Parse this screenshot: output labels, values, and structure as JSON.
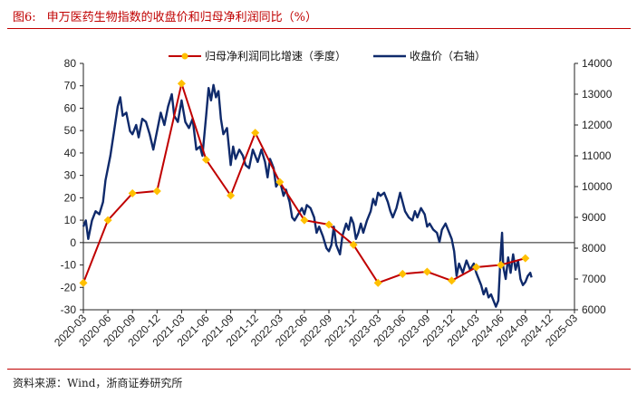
{
  "figure": {
    "number": "图6:",
    "title": "申万医药生物指数的收盘价和归母净利润同比（%）",
    "source": "资料来源：Wind，浙商证券研究所"
  },
  "chart_data": {
    "type": "line",
    "legend": {
      "profit_label": "归母净利润同比增速（季度）",
      "close_label": "收盘价（右轴）",
      "placement": "top"
    },
    "x_categories": [
      "2020-03",
      "2020-06",
      "2020-09",
      "2020-12",
      "2021-03",
      "2021-06",
      "2021-09",
      "2021-12",
      "2022-03",
      "2022-06",
      "2022-09",
      "2022-12",
      "2023-03",
      "2023-06",
      "2023-09",
      "2023-12",
      "2024-03",
      "2024-06",
      "2024-09",
      "2024-12",
      "2025-03"
    ],
    "left_axis": {
      "min": -30,
      "max": 80,
      "ticks": [
        80,
        70,
        60,
        50,
        40,
        30,
        20,
        10,
        0,
        -10,
        -20,
        -30
      ]
    },
    "right_axis": {
      "min": 6000,
      "max": 14000,
      "ticks": [
        14000,
        13000,
        12000,
        11000,
        10000,
        9000,
        8000,
        7000,
        6000
      ]
    },
    "series": [
      {
        "name": "归母净利润同比增速（季度）",
        "axis": "left",
        "color": "#c00000",
        "marker_color": "#ffc000",
        "points": [
          {
            "x": "2020-03",
            "y": -18
          },
          {
            "x": "2020-06",
            "y": 10
          },
          {
            "x": "2020-09",
            "y": 22
          },
          {
            "x": "2020-12",
            "y": 23
          },
          {
            "x": "2021-03",
            "y": 71
          },
          {
            "x": "2021-06",
            "y": 37
          },
          {
            "x": "2021-09",
            "y": 21
          },
          {
            "x": "2021-12",
            "y": 49
          },
          {
            "x": "2022-03",
            "y": 27
          },
          {
            "x": "2022-06",
            "y": 10
          },
          {
            "x": "2022-09",
            "y": 8
          },
          {
            "x": "2022-12",
            "y": -1
          },
          {
            "x": "2023-03",
            "y": -18
          },
          {
            "x": "2023-06",
            "y": -14
          },
          {
            "x": "2023-09",
            "y": -13
          },
          {
            "x": "2023-12",
            "y": -17
          },
          {
            "x": "2024-03",
            "y": -11
          },
          {
            "x": "2024-06",
            "y": -10
          },
          {
            "x": "2024-09",
            "y": -7
          }
        ]
      },
      {
        "name": "收盘价（右轴）",
        "axis": "right",
        "color": "#0f2a6b",
        "points": [
          {
            "t": 0.0,
            "v": 8700
          },
          {
            "t": 0.1,
            "v": 8900
          },
          {
            "t": 0.2,
            "v": 8300
          },
          {
            "t": 0.35,
            "v": 8900
          },
          {
            "t": 0.5,
            "v": 9200
          },
          {
            "t": 0.65,
            "v": 9100
          },
          {
            "t": 0.8,
            "v": 9500
          },
          {
            "t": 0.9,
            "v": 10200
          },
          {
            "t": 1.0,
            "v": 10600
          },
          {
            "t": 1.1,
            "v": 11000
          },
          {
            "t": 1.25,
            "v": 11800
          },
          {
            "t": 1.4,
            "v": 12600
          },
          {
            "t": 1.5,
            "v": 12900
          },
          {
            "t": 1.6,
            "v": 12300
          },
          {
            "t": 1.75,
            "v": 12400
          },
          {
            "t": 1.9,
            "v": 11800
          },
          {
            "t": 2.0,
            "v": 11700
          },
          {
            "t": 2.15,
            "v": 12000
          },
          {
            "t": 2.25,
            "v": 11600
          },
          {
            "t": 2.4,
            "v": 12200
          },
          {
            "t": 2.55,
            "v": 12100
          },
          {
            "t": 2.7,
            "v": 11700
          },
          {
            "t": 2.85,
            "v": 11200
          },
          {
            "t": 3.0,
            "v": 11800
          },
          {
            "t": 3.15,
            "v": 12400
          },
          {
            "t": 3.3,
            "v": 12000
          },
          {
            "t": 3.45,
            "v": 12600
          },
          {
            "t": 3.6,
            "v": 13000
          },
          {
            "t": 3.7,
            "v": 12300
          },
          {
            "t": 3.85,
            "v": 12100
          },
          {
            "t": 4.0,
            "v": 12800
          },
          {
            "t": 4.15,
            "v": 12100
          },
          {
            "t": 4.3,
            "v": 11900
          },
          {
            "t": 4.45,
            "v": 12200
          },
          {
            "t": 4.6,
            "v": 11200
          },
          {
            "t": 4.75,
            "v": 11300
          },
          {
            "t": 4.85,
            "v": 11000
          },
          {
            "t": 5.0,
            "v": 12300
          },
          {
            "t": 5.1,
            "v": 13200
          },
          {
            "t": 5.2,
            "v": 12800
          },
          {
            "t": 5.3,
            "v": 13300
          },
          {
            "t": 5.4,
            "v": 12900
          },
          {
            "t": 5.5,
            "v": 13100
          },
          {
            "t": 5.6,
            "v": 12200
          },
          {
            "t": 5.7,
            "v": 11700
          },
          {
            "t": 5.85,
            "v": 11900
          },
          {
            "t": 6.0,
            "v": 10700
          },
          {
            "t": 6.1,
            "v": 11300
          },
          {
            "t": 6.2,
            "v": 10900
          },
          {
            "t": 6.35,
            "v": 11200
          },
          {
            "t": 6.5,
            "v": 11000
          },
          {
            "t": 6.6,
            "v": 10700
          },
          {
            "t": 6.75,
            "v": 10600
          },
          {
            "t": 6.9,
            "v": 11200
          },
          {
            "t": 7.0,
            "v": 11000
          },
          {
            "t": 7.1,
            "v": 10800
          },
          {
            "t": 7.25,
            "v": 11200
          },
          {
            "t": 7.4,
            "v": 10800
          },
          {
            "t": 7.5,
            "v": 10300
          },
          {
            "t": 7.6,
            "v": 10900
          },
          {
            "t": 7.75,
            "v": 10600
          },
          {
            "t": 7.85,
            "v": 10000
          },
          {
            "t": 8.0,
            "v": 10200
          },
          {
            "t": 8.15,
            "v": 9700
          },
          {
            "t": 8.25,
            "v": 9900
          },
          {
            "t": 8.4,
            "v": 9500
          },
          {
            "t": 8.5,
            "v": 9000
          },
          {
            "t": 8.6,
            "v": 8900
          },
          {
            "t": 8.75,
            "v": 9100
          },
          {
            "t": 8.9,
            "v": 9300
          },
          {
            "t": 9.0,
            "v": 9100
          },
          {
            "t": 9.1,
            "v": 9400
          },
          {
            "t": 9.25,
            "v": 9300
          },
          {
            "t": 9.4,
            "v": 9000
          },
          {
            "t": 9.5,
            "v": 8500
          },
          {
            "t": 9.6,
            "v": 8700
          },
          {
            "t": 9.75,
            "v": 8400
          },
          {
            "t": 9.9,
            "v": 8000
          },
          {
            "t": 10.0,
            "v": 7900
          },
          {
            "t": 10.1,
            "v": 8100
          },
          {
            "t": 10.2,
            "v": 8700
          },
          {
            "t": 10.3,
            "v": 8100
          },
          {
            "t": 10.45,
            "v": 7800
          },
          {
            "t": 10.55,
            "v": 8400
          },
          {
            "t": 10.7,
            "v": 8800
          },
          {
            "t": 10.8,
            "v": 8600
          },
          {
            "t": 10.9,
            "v": 9000
          },
          {
            "t": 11.0,
            "v": 8800
          },
          {
            "t": 11.1,
            "v": 8300
          },
          {
            "t": 11.2,
            "v": 8500
          },
          {
            "t": 11.3,
            "v": 8800
          },
          {
            "t": 11.4,
            "v": 8500
          },
          {
            "t": 11.55,
            "v": 8900
          },
          {
            "t": 11.7,
            "v": 9200
          },
          {
            "t": 11.8,
            "v": 9600
          },
          {
            "t": 11.9,
            "v": 9400
          },
          {
            "t": 12.0,
            "v": 9800
          },
          {
            "t": 12.1,
            "v": 9700
          },
          {
            "t": 12.25,
            "v": 9800
          },
          {
            "t": 12.4,
            "v": 9500
          },
          {
            "t": 12.5,
            "v": 9200
          },
          {
            "t": 12.6,
            "v": 9000
          },
          {
            "t": 12.75,
            "v": 9300
          },
          {
            "t": 12.9,
            "v": 9800
          },
          {
            "t": 13.0,
            "v": 9500
          },
          {
            "t": 13.1,
            "v": 9200
          },
          {
            "t": 13.25,
            "v": 9000
          },
          {
            "t": 13.4,
            "v": 8900
          },
          {
            "t": 13.5,
            "v": 9200
          },
          {
            "t": 13.6,
            "v": 9000
          },
          {
            "t": 13.75,
            "v": 9300
          },
          {
            "t": 13.9,
            "v": 9100
          },
          {
            "t": 14.0,
            "v": 8700
          },
          {
            "t": 14.1,
            "v": 8800
          },
          {
            "t": 14.25,
            "v": 8600
          },
          {
            "t": 14.4,
            "v": 8500
          },
          {
            "t": 14.5,
            "v": 8200
          },
          {
            "t": 14.6,
            "v": 8600
          },
          {
            "t": 14.75,
            "v": 8800
          },
          {
            "t": 14.9,
            "v": 8500
          },
          {
            "t": 15.0,
            "v": 8300
          },
          {
            "t": 15.1,
            "v": 7900
          },
          {
            "t": 15.2,
            "v": 7100
          },
          {
            "t": 15.3,
            "v": 7500
          },
          {
            "t": 15.45,
            "v": 7200
          },
          {
            "t": 15.6,
            "v": 7600
          },
          {
            "t": 15.75,
            "v": 7300
          },
          {
            "t": 15.9,
            "v": 7500
          },
          {
            "t": 16.0,
            "v": 7200
          },
          {
            "t": 16.1,
            "v": 7000
          },
          {
            "t": 16.2,
            "v": 6800
          },
          {
            "t": 16.3,
            "v": 6500
          },
          {
            "t": 16.4,
            "v": 6700
          },
          {
            "t": 16.5,
            "v": 6400
          },
          {
            "t": 16.6,
            "v": 6500
          },
          {
            "t": 16.7,
            "v": 6300
          },
          {
            "t": 16.8,
            "v": 6100
          },
          {
            "t": 16.9,
            "v": 6300
          },
          {
            "t": 17.0,
            "v": 7900
          },
          {
            "t": 17.05,
            "v": 8500
          },
          {
            "t": 17.1,
            "v": 7400
          },
          {
            "t": 17.2,
            "v": 7000
          },
          {
            "t": 17.3,
            "v": 7700
          },
          {
            "t": 17.4,
            "v": 7200
          },
          {
            "t": 17.5,
            "v": 7800
          },
          {
            "t": 17.6,
            "v": 7300
          },
          {
            "t": 17.7,
            "v": 7600
          },
          {
            "t": 17.8,
            "v": 7000
          },
          {
            "t": 17.9,
            "v": 6800
          },
          {
            "t": 18.0,
            "v": 6900
          },
          {
            "t": 18.1,
            "v": 7100
          },
          {
            "t": 18.2,
            "v": 7200
          },
          {
            "t": 18.25,
            "v": 7050
          }
        ]
      }
    ]
  }
}
